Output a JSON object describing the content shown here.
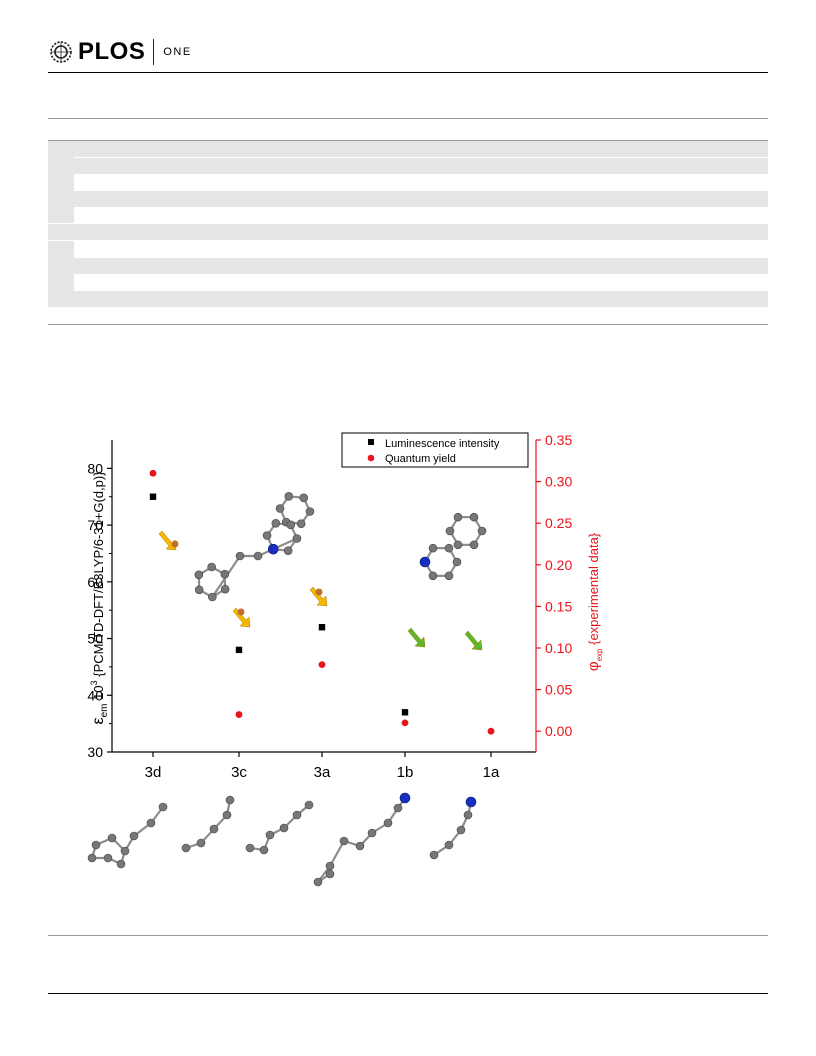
{
  "header": {
    "logo_word": "PLOS",
    "logo_suffix": "ONE"
  },
  "chart_data": {
    "type": "scatter",
    "categories": [
      "3d",
      "3c",
      "3a",
      "1b",
      "1a"
    ],
    "series": [
      {
        "name": "Luminescence intensity",
        "axis": "left",
        "marker": "square",
        "color": "#000000",
        "values": [
          75,
          48,
          52,
          37,
          null
        ]
      },
      {
        "name": "Quantum yield",
        "axis": "right",
        "marker": "circle",
        "color": "#e8141c",
        "values": [
          0.31,
          0.02,
          0.08,
          0.01,
          0.0
        ]
      }
    ],
    "ylabel_left_prefix": "ε",
    "ylabel_left_sub": "em",
    "ylabel_left_mid": " 10",
    "ylabel_left_sup": "3",
    "ylabel_left_rest": " {PCM/TD-DFT/B3LYP/6-31+G(d,p)}",
    "ylabel_right_prefix": "φ",
    "ylabel_right_sub": "exp",
    "ylabel_right_rest": " {experimental data}",
    "ylim_left": [
      30,
      85
    ],
    "ylim_right": [
      -0.025,
      0.35
    ],
    "yticks_left": [
      "30",
      "40",
      "50",
      "60",
      "70",
      "80"
    ],
    "yticks_right": [
      "0.00",
      "0.05",
      "0.10",
      "0.15",
      "0.20",
      "0.25",
      "0.30",
      "0.35"
    ],
    "legend_position": "top-right",
    "grid": false
  },
  "colors": {
    "left_axis": "#000000",
    "right_axis": "#e8141c",
    "arrow_yellow": "#f5b800",
    "arrow_green": "#5bb82a",
    "atom_carbon": "#8a8a8a",
    "atom_nitrogen": "#1a2fbf"
  }
}
